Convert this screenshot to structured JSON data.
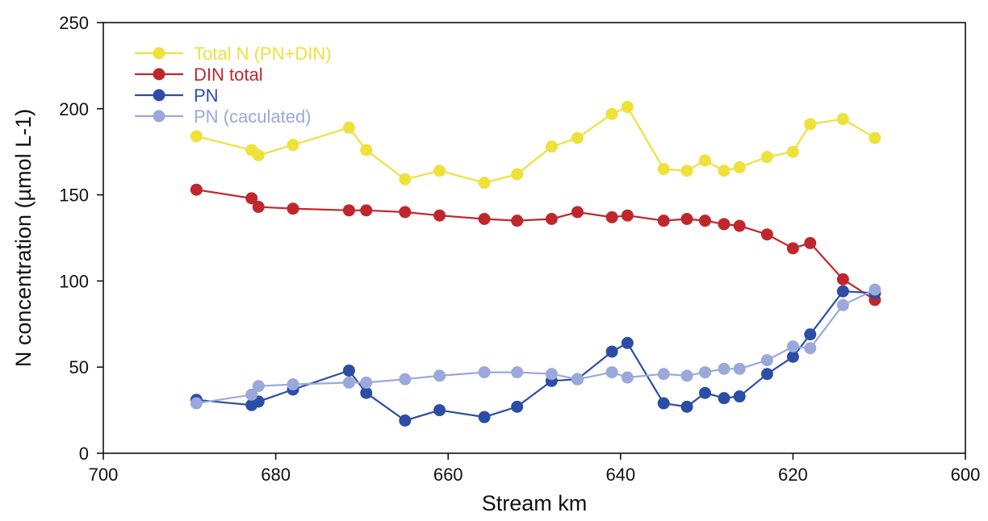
{
  "chart_data": {
    "type": "line",
    "xlabel": "Stream km",
    "ylabel": "N concentration (µmol L-1)",
    "xlim": [
      700,
      600
    ],
    "ylim": [
      0,
      250
    ],
    "x_reversed": true,
    "xticks": [
      700,
      680,
      660,
      640,
      620,
      600
    ],
    "yticks": [
      0,
      50,
      100,
      150,
      200,
      250
    ],
    "grid": false,
    "legend_position": "top-left",
    "series": [
      {
        "name": "Total N (PN+DIN)",
        "color": "#EEE13A",
        "points": [
          [
            689.2,
            184
          ],
          [
            682.8,
            176
          ],
          [
            682.0,
            173
          ],
          [
            678.0,
            179
          ],
          [
            671.5,
            189
          ],
          [
            669.5,
            176
          ],
          [
            665.0,
            159
          ],
          [
            661.0,
            164
          ],
          [
            655.8,
            157
          ],
          [
            652.0,
            162
          ],
          [
            648.0,
            178
          ],
          [
            645.0,
            183
          ],
          [
            641.0,
            197
          ],
          [
            639.2,
            201
          ],
          [
            635.0,
            165
          ],
          [
            632.3,
            164
          ],
          [
            630.2,
            170
          ],
          [
            628.0,
            164
          ],
          [
            626.2,
            166
          ],
          [
            623.0,
            172
          ],
          [
            620.0,
            175
          ],
          [
            618.0,
            191
          ],
          [
            614.2,
            194
          ],
          [
            610.5,
            183
          ]
        ]
      },
      {
        "name": "DIN total",
        "color": "#C0272D",
        "points": [
          [
            689.2,
            153
          ],
          [
            682.8,
            148
          ],
          [
            682.0,
            143
          ],
          [
            678.0,
            142
          ],
          [
            671.5,
            141
          ],
          [
            669.5,
            141
          ],
          [
            665.0,
            140
          ],
          [
            661.0,
            138
          ],
          [
            655.8,
            136
          ],
          [
            652.0,
            135
          ],
          [
            648.0,
            136
          ],
          [
            645.0,
            140
          ],
          [
            641.0,
            137
          ],
          [
            639.2,
            138
          ],
          [
            635.0,
            135
          ],
          [
            632.3,
            136
          ],
          [
            630.2,
            135
          ],
          [
            628.0,
            133
          ],
          [
            626.2,
            132
          ],
          [
            623.0,
            127
          ],
          [
            620.0,
            119
          ],
          [
            618.0,
            122
          ],
          [
            614.2,
            101
          ],
          [
            610.5,
            89
          ]
        ]
      },
      {
        "name": "PN",
        "color": "#2B4DA6",
        "points": [
          [
            689.2,
            31
          ],
          [
            682.8,
            28
          ],
          [
            682.0,
            30
          ],
          [
            678.0,
            37
          ],
          [
            671.5,
            48
          ],
          [
            669.5,
            35
          ],
          [
            665.0,
            19
          ],
          [
            661.0,
            25
          ],
          [
            655.8,
            21
          ],
          [
            652.0,
            27
          ],
          [
            648.0,
            42
          ],
          [
            645.0,
            43
          ],
          [
            641.0,
            59
          ],
          [
            639.2,
            64
          ],
          [
            635.0,
            29
          ],
          [
            632.3,
            27
          ],
          [
            630.2,
            35
          ],
          [
            628.0,
            32
          ],
          [
            626.2,
            33
          ],
          [
            623.0,
            46
          ],
          [
            620.0,
            56
          ],
          [
            618.0,
            69
          ],
          [
            614.2,
            94
          ],
          [
            610.5,
            93
          ]
        ]
      },
      {
        "name": "PN (caculated)",
        "color": "#9AA8DB",
        "points": [
          [
            689.2,
            29
          ],
          [
            682.8,
            34
          ],
          [
            682.0,
            39
          ],
          [
            678.0,
            40
          ],
          [
            671.5,
            41
          ],
          [
            669.5,
            41
          ],
          [
            665.0,
            43
          ],
          [
            661.0,
            45
          ],
          [
            655.8,
            47
          ],
          [
            652.0,
            47
          ],
          [
            648.0,
            46
          ],
          [
            645.0,
            43
          ],
          [
            641.0,
            47
          ],
          [
            639.2,
            44
          ],
          [
            635.0,
            46
          ],
          [
            632.3,
            45
          ],
          [
            630.2,
            47
          ],
          [
            628.0,
            49
          ],
          [
            626.2,
            49
          ],
          [
            623.0,
            54
          ],
          [
            620.0,
            62
          ],
          [
            618.0,
            61
          ],
          [
            614.2,
            86
          ],
          [
            610.5,
            95
          ]
        ]
      }
    ]
  }
}
